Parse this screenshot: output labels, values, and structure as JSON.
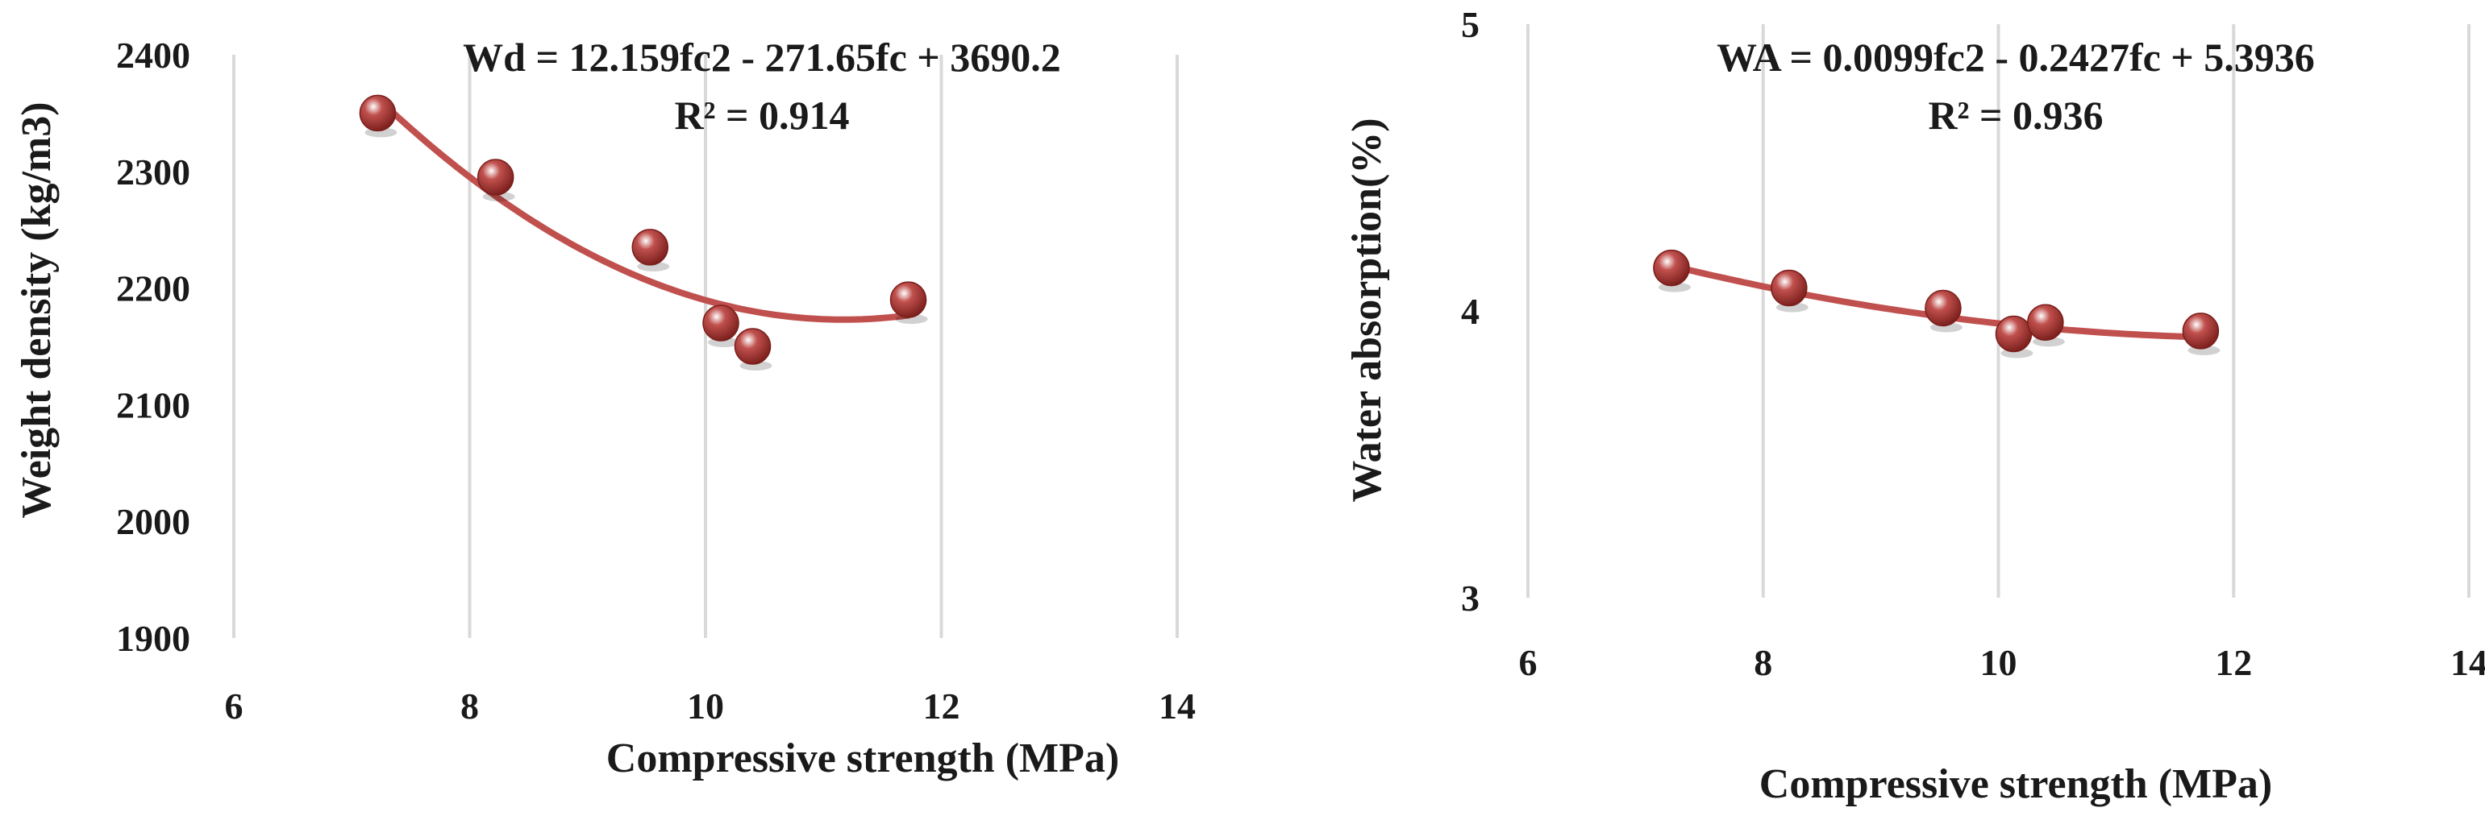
{
  "figure": {
    "colors": {
      "marker": "#c0504d",
      "marker_dark": "#7a1f1c",
      "marker_highlight": "#ffffff",
      "trendline": "#c0504d",
      "grid": "#d9d9d9",
      "text": "#1a1a1a"
    }
  },
  "chart_data": [
    {
      "type": "scatter",
      "xlabel": "Compressive strength (MPa)",
      "ylabel": "Weight density (kg/m3)",
      "xlim": [
        6,
        14
      ],
      "ylim": [
        1900,
        2400
      ],
      "xticks": [
        "6",
        "8",
        "10",
        "12",
        "14"
      ],
      "yticks": [
        "1900",
        "2000",
        "2100",
        "2200",
        "2300",
        "2400"
      ],
      "xtick_values": [
        6,
        8,
        10,
        12,
        14
      ],
      "ytick_values": [
        1900,
        2000,
        2100,
        2200,
        2300,
        2400
      ],
      "grid": "vertical",
      "series": [
        {
          "x": [
            7.22,
            8.22,
            9.53,
            10.13,
            10.4,
            11.72
          ],
          "y": [
            2350,
            2295,
            2235,
            2170,
            2150,
            2190
          ]
        }
      ],
      "trendline": {
        "type": "polynomial",
        "coefficients": [
          12.159,
          -271.65,
          3690.2
        ],
        "x_range": [
          7.22,
          11.72
        ]
      },
      "annotations": [
        "Wd = 12.159fc2 - 271.65fc + 3690.2",
        "R² = 0.914"
      ]
    },
    {
      "type": "scatter",
      "xlabel": "Compressive strength (MPa)",
      "ylabel": "Water absorption(%)",
      "xlim": [
        6,
        14
      ],
      "ylim": [
        3,
        5
      ],
      "xticks": [
        "6",
        "8",
        "10",
        "12",
        "14"
      ],
      "yticks": [
        "3",
        "4",
        "5"
      ],
      "xtick_values": [
        6,
        8,
        10,
        12,
        14
      ],
      "ytick_values": [
        3,
        4,
        5
      ],
      "grid": "vertical",
      "series": [
        {
          "x": [
            7.22,
            8.22,
            9.53,
            10.13,
            10.4,
            11.72
          ],
          "y": [
            4.15,
            4.08,
            4.01,
            3.92,
            3.96,
            3.93
          ]
        }
      ],
      "trendline": {
        "type": "polynomial",
        "coefficients": [
          0.0099,
          -0.2427,
          5.3936
        ],
        "x_range": [
          7.22,
          11.72
        ]
      },
      "annotations": [
        "WA = 0.0099fc2 - 0.2427fc + 5.3936",
        "R² = 0.936"
      ]
    }
  ]
}
